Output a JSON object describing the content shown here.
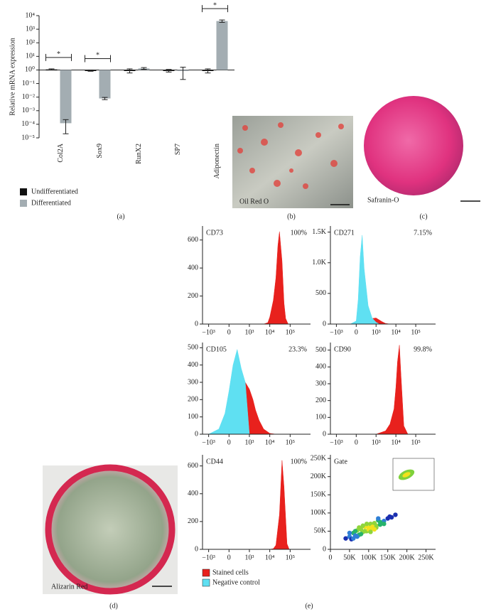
{
  "panels": {
    "a": "(a)",
    "b": "(b)",
    "c": "(c)",
    "d": "(d)",
    "e": "(e)"
  },
  "images": {
    "b": "Oil Red O",
    "c": "Safranin-O",
    "d": "Alizarin Red"
  },
  "chart_data": [
    {
      "type": "bar",
      "ylabel": "Relative mRNA expression",
      "log_scale": true,
      "categories": [
        "Col2A",
        "Sox9",
        "RunX2",
        "SP7",
        "Adiponectin"
      ],
      "series": [
        {
          "name": "Undifferentiated",
          "color": "#111111",
          "values": [
            1.1,
            0.9,
            0.9,
            0.9,
            0.9
          ],
          "errors": [
            0.1,
            0.1,
            0.3,
            0.2,
            0.3
          ]
        },
        {
          "name": "Differentiated",
          "color": "#a3adb2",
          "values": [
            0.00012,
            0.008,
            1.3,
            0.9,
            4000
          ],
          "errors": [
            0.0001,
            0.0015,
            0.2,
            0.7,
            800
          ]
        }
      ],
      "significance": [
        "*",
        "*",
        null,
        null,
        "*"
      ],
      "ylim": [
        1e-05,
        10000
      ],
      "yticks": [
        {
          "value": 10000,
          "label": "10⁴"
        },
        {
          "value": 1000,
          "label": "10³"
        },
        {
          "value": 100,
          "label": "10²"
        },
        {
          "value": 10,
          "label": "10¹"
        },
        {
          "value": 1,
          "label": "10⁰"
        },
        {
          "value": 0.1,
          "label": "10⁻¹"
        },
        {
          "value": 0.01,
          "label": "10⁻²"
        },
        {
          "value": 0.001,
          "label": "10⁻³"
        },
        {
          "value": 0.0001,
          "label": "10⁻⁴"
        },
        {
          "value": 1e-05,
          "label": "10⁻⁵"
        }
      ]
    },
    {
      "type": "histogram",
      "title": "CD73",
      "annotation": "100%",
      "xscale": "biexponential",
      "xlim": [
        -2000,
        1000000
      ],
      "xticks": [
        {
          "value": -1000,
          "label": "−10³"
        },
        0,
        {
          "value": 1000,
          "label": "10³"
        },
        {
          "value": 10000,
          "label": "10⁴"
        },
        {
          "value": 100000,
          "label": "10⁵"
        }
      ],
      "ylim": [
        0,
        700
      ],
      "yticks": [
        0,
        200,
        400,
        600
      ],
      "series": [
        {
          "color": "#e8211d",
          "x": [
            5000,
            8000,
            10000,
            15000,
            20000,
            25000,
            30000,
            40000,
            50000,
            60000,
            80000
          ],
          "values": [
            0,
            10,
            50,
            170,
            330,
            560,
            660,
            450,
            150,
            40,
            0
          ]
        }
      ]
    },
    {
      "type": "histogram",
      "title": "CD271",
      "annotation": "7.15%",
      "xscale": "biexponential",
      "xlim": [
        -2000,
        1000000
      ],
      "xticks": [
        {
          "value": -1000,
          "label": "−10³"
        },
        0,
        {
          "value": 1000,
          "label": "10³"
        },
        {
          "value": 10000,
          "label": "10⁴"
        },
        {
          "value": 100000,
          "label": "10⁵"
        }
      ],
      "ylim": [
        0,
        1600
      ],
      "yticks": [
        0,
        500,
        {
          "value": 1000,
          "label": "1.0K"
        },
        {
          "value": 1500,
          "label": "1.5K"
        }
      ],
      "series": [
        {
          "color": "#e8211d",
          "x": [
            300,
            600,
            1000,
            2000,
            3000,
            5000
          ],
          "values": [
            0,
            80,
            100,
            40,
            10,
            0
          ]
        },
        {
          "color": "#5fe0f2",
          "x": [
            -300,
            0,
            100,
            200,
            300,
            400,
            600,
            800,
            1000,
            1500
          ],
          "values": [
            0,
            50,
            400,
            1100,
            1450,
            900,
            300,
            100,
            30,
            0
          ]
        }
      ]
    },
    {
      "type": "histogram",
      "title": "CD105",
      "annotation": "23.3%",
      "xscale": "biexponential",
      "xlim": [
        -2000,
        1000000
      ],
      "xticks": [
        {
          "value": -1000,
          "label": "−10³"
        },
        0,
        {
          "value": 1000,
          "label": "10³"
        },
        {
          "value": 10000,
          "label": "10⁴"
        },
        {
          "value": 100000,
          "label": "10⁵"
        }
      ],
      "ylim": [
        0,
        530
      ],
      "yticks": [
        0,
        100,
        200,
        300,
        400,
        500
      ],
      "series": [
        {
          "name": "Stained cells",
          "color": "#e8211d",
          "x": [
            500,
            800,
            1000,
            1500,
            2000,
            3000,
            5000,
            10000,
            20000
          ],
          "values": [
            0,
            300,
            260,
            200,
            140,
            80,
            30,
            5,
            0
          ]
        },
        {
          "name": "Negative control",
          "color": "#5fe0f2",
          "x": [
            -1000,
            -500,
            -200,
            0,
            200,
            400,
            600,
            800,
            1000
          ],
          "values": [
            0,
            30,
            120,
            250,
            400,
            490,
            380,
            300,
            0
          ]
        }
      ]
    },
    {
      "type": "histogram",
      "title": "CD90",
      "annotation": "99.8%",
      "xscale": "biexponential",
      "xlim": [
        -2000,
        1000000
      ],
      "xticks": [
        {
          "value": -1000,
          "label": "−10³"
        },
        0,
        {
          "value": 1000,
          "label": "10³"
        },
        {
          "value": 10000,
          "label": "10⁴"
        },
        {
          "value": 100000,
          "label": "10⁵"
        }
      ],
      "ylim": [
        0,
        545
      ],
      "yticks": [
        0,
        100,
        200,
        300,
        400,
        500
      ],
      "series": [
        {
          "color": "#e8211d",
          "x": [
            1000,
            3000,
            5000,
            8000,
            10000,
            12000,
            15000,
            18000,
            25000,
            40000
          ],
          "values": [
            0,
            20,
            60,
            150,
            280,
            430,
            530,
            350,
            50,
            0
          ]
        }
      ]
    },
    {
      "type": "histogram",
      "title": "CD44",
      "annotation": "100%",
      "xscale": "biexponential",
      "xlim": [
        -2000,
        1000000
      ],
      "xticks": [
        {
          "value": -1000,
          "label": "−10³"
        },
        0,
        {
          "value": 1000,
          "label": "10³"
        },
        {
          "value": 10000,
          "label": "10⁴"
        },
        {
          "value": 100000,
          "label": "10⁵"
        }
      ],
      "ylim": [
        0,
        680
      ],
      "yticks": [
        0,
        200,
        400,
        600
      ],
      "series": [
        {
          "color": "#e8211d",
          "x": [
            10000,
            15000,
            20000,
            30000,
            40000,
            50000,
            70000,
            90000
          ],
          "values": [
            0,
            5,
            30,
            250,
            640,
            450,
            40,
            0
          ]
        }
      ]
    },
    {
      "type": "scatter",
      "title": "Gate",
      "xlim": [
        0,
        275000
      ],
      "xticks": [
        0,
        {
          "value": 50000,
          "label": "50K"
        },
        {
          "value": 100000,
          "label": "100K"
        },
        {
          "value": 150000,
          "label": "150K"
        },
        {
          "value": 200000,
          "label": "200K"
        },
        {
          "value": 250000,
          "label": "250K"
        }
      ],
      "ylim": [
        0,
        260000
      ],
      "yticks": [
        0,
        {
          "value": 50000,
          "label": "50K"
        },
        {
          "value": 100000,
          "label": "100K"
        },
        {
          "value": 150000,
          "label": "150K"
        },
        {
          "value": 200000,
          "label": "200K"
        },
        {
          "value": 250000,
          "label": "250K"
        }
      ],
      "x": [
        40000,
        50000,
        55000,
        60000,
        65000,
        70000,
        75000,
        80000,
        85000,
        90000,
        95000,
        100000,
        105000,
        110000,
        115000,
        120000,
        125000,
        130000,
        140000,
        150000,
        160000,
        170000,
        60000,
        70000,
        80000,
        90000,
        100000,
        110000,
        120000,
        130000,
        75000,
        85000,
        95000,
        105000,
        115000,
        50000,
        140000,
        155000,
        65000,
        125000
      ],
      "values": [
        30000,
        35000,
        28000,
        45000,
        38000,
        52000,
        40000,
        55000,
        48000,
        62000,
        50000,
        60000,
        70000,
        58000,
        72000,
        65000,
        80000,
        68000,
        78000,
        85000,
        88000,
        95000,
        30000,
        35000,
        42000,
        50000,
        55000,
        62000,
        60000,
        75000,
        60000,
        65000,
        70000,
        48000,
        55000,
        45000,
        70000,
        90000,
        50000,
        85000
      ]
    }
  ]
}
